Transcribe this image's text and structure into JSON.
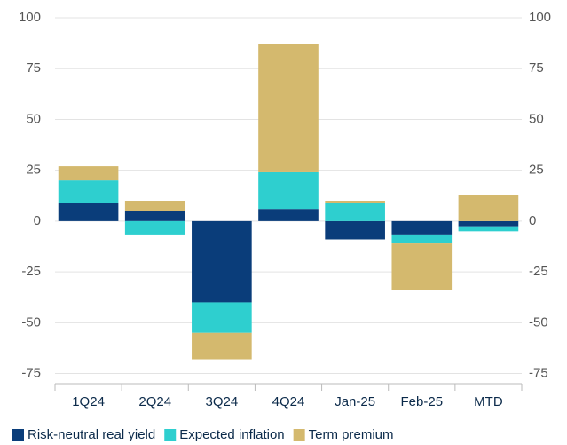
{
  "chart_data": {
    "type": "bar",
    "stacked": true,
    "categories": [
      "1Q24",
      "2Q24",
      "3Q24",
      "4Q24",
      "Jan-25",
      "Feb-25",
      "MTD"
    ],
    "series": [
      {
        "name": "Risk-neutral real yield",
        "color": "#0a3d7a",
        "values": [
          9,
          5,
          -40,
          6,
          -9,
          -7,
          -3
        ]
      },
      {
        "name": "Expected inflation",
        "color": "#2ecfcf",
        "values": [
          11,
          -7,
          -15,
          18,
          9,
          -4,
          -2
        ]
      },
      {
        "name": "Term premium",
        "color": "#d4b96e",
        "values": [
          7,
          5,
          -13,
          63,
          1,
          -23,
          13
        ]
      }
    ],
    "ylim": [
      -80,
      100
    ],
    "yticks": [
      -75,
      -50,
      -25,
      0,
      25,
      50,
      75,
      100
    ],
    "grid": true
  }
}
